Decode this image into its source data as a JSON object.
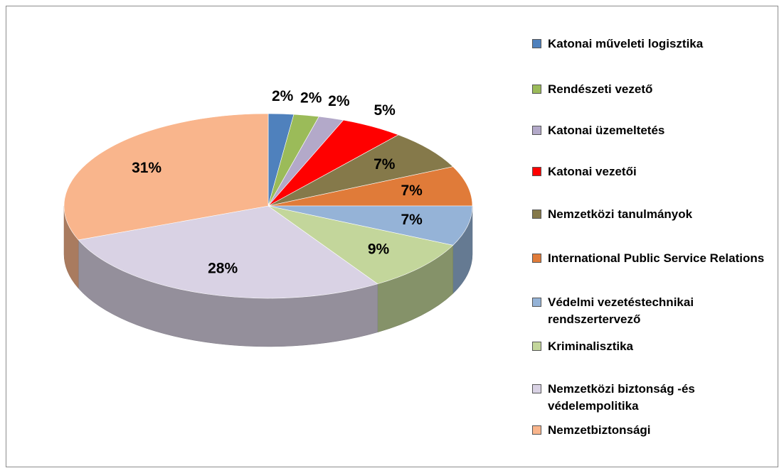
{
  "chart_data": {
    "type": "pie",
    "categories": [
      "Katonai műveleti logisztika",
      "Rendészeti vezető",
      "Katonai üzemeltetés",
      "Katonai vezetői",
      "Nemzetközi tanulmányok",
      "International Public Service Relations",
      "Védelmi vezetéstechnikai rendszertervező",
      "Kriminalisztika",
      "Nemzetközi biztonság -és védelempolitika",
      "Nemzetbiztonsági"
    ],
    "values": [
      2,
      2,
      2,
      5,
      7,
      7,
      7,
      9,
      28,
      31
    ],
    "value_labels": [
      "2%",
      "2%",
      "2%",
      "5%",
      "7%",
      "7%",
      "7%",
      "9%",
      "28%",
      "31%"
    ],
    "colors": [
      "#4f81bd",
      "#9bbb59",
      "#b3a9c9",
      "#ff0000",
      "#85794a",
      "#e07b39",
      "#95b3d7",
      "#c3d69b",
      "#d9d2e4",
      "#f9b58c"
    ],
    "legend": "right"
  }
}
